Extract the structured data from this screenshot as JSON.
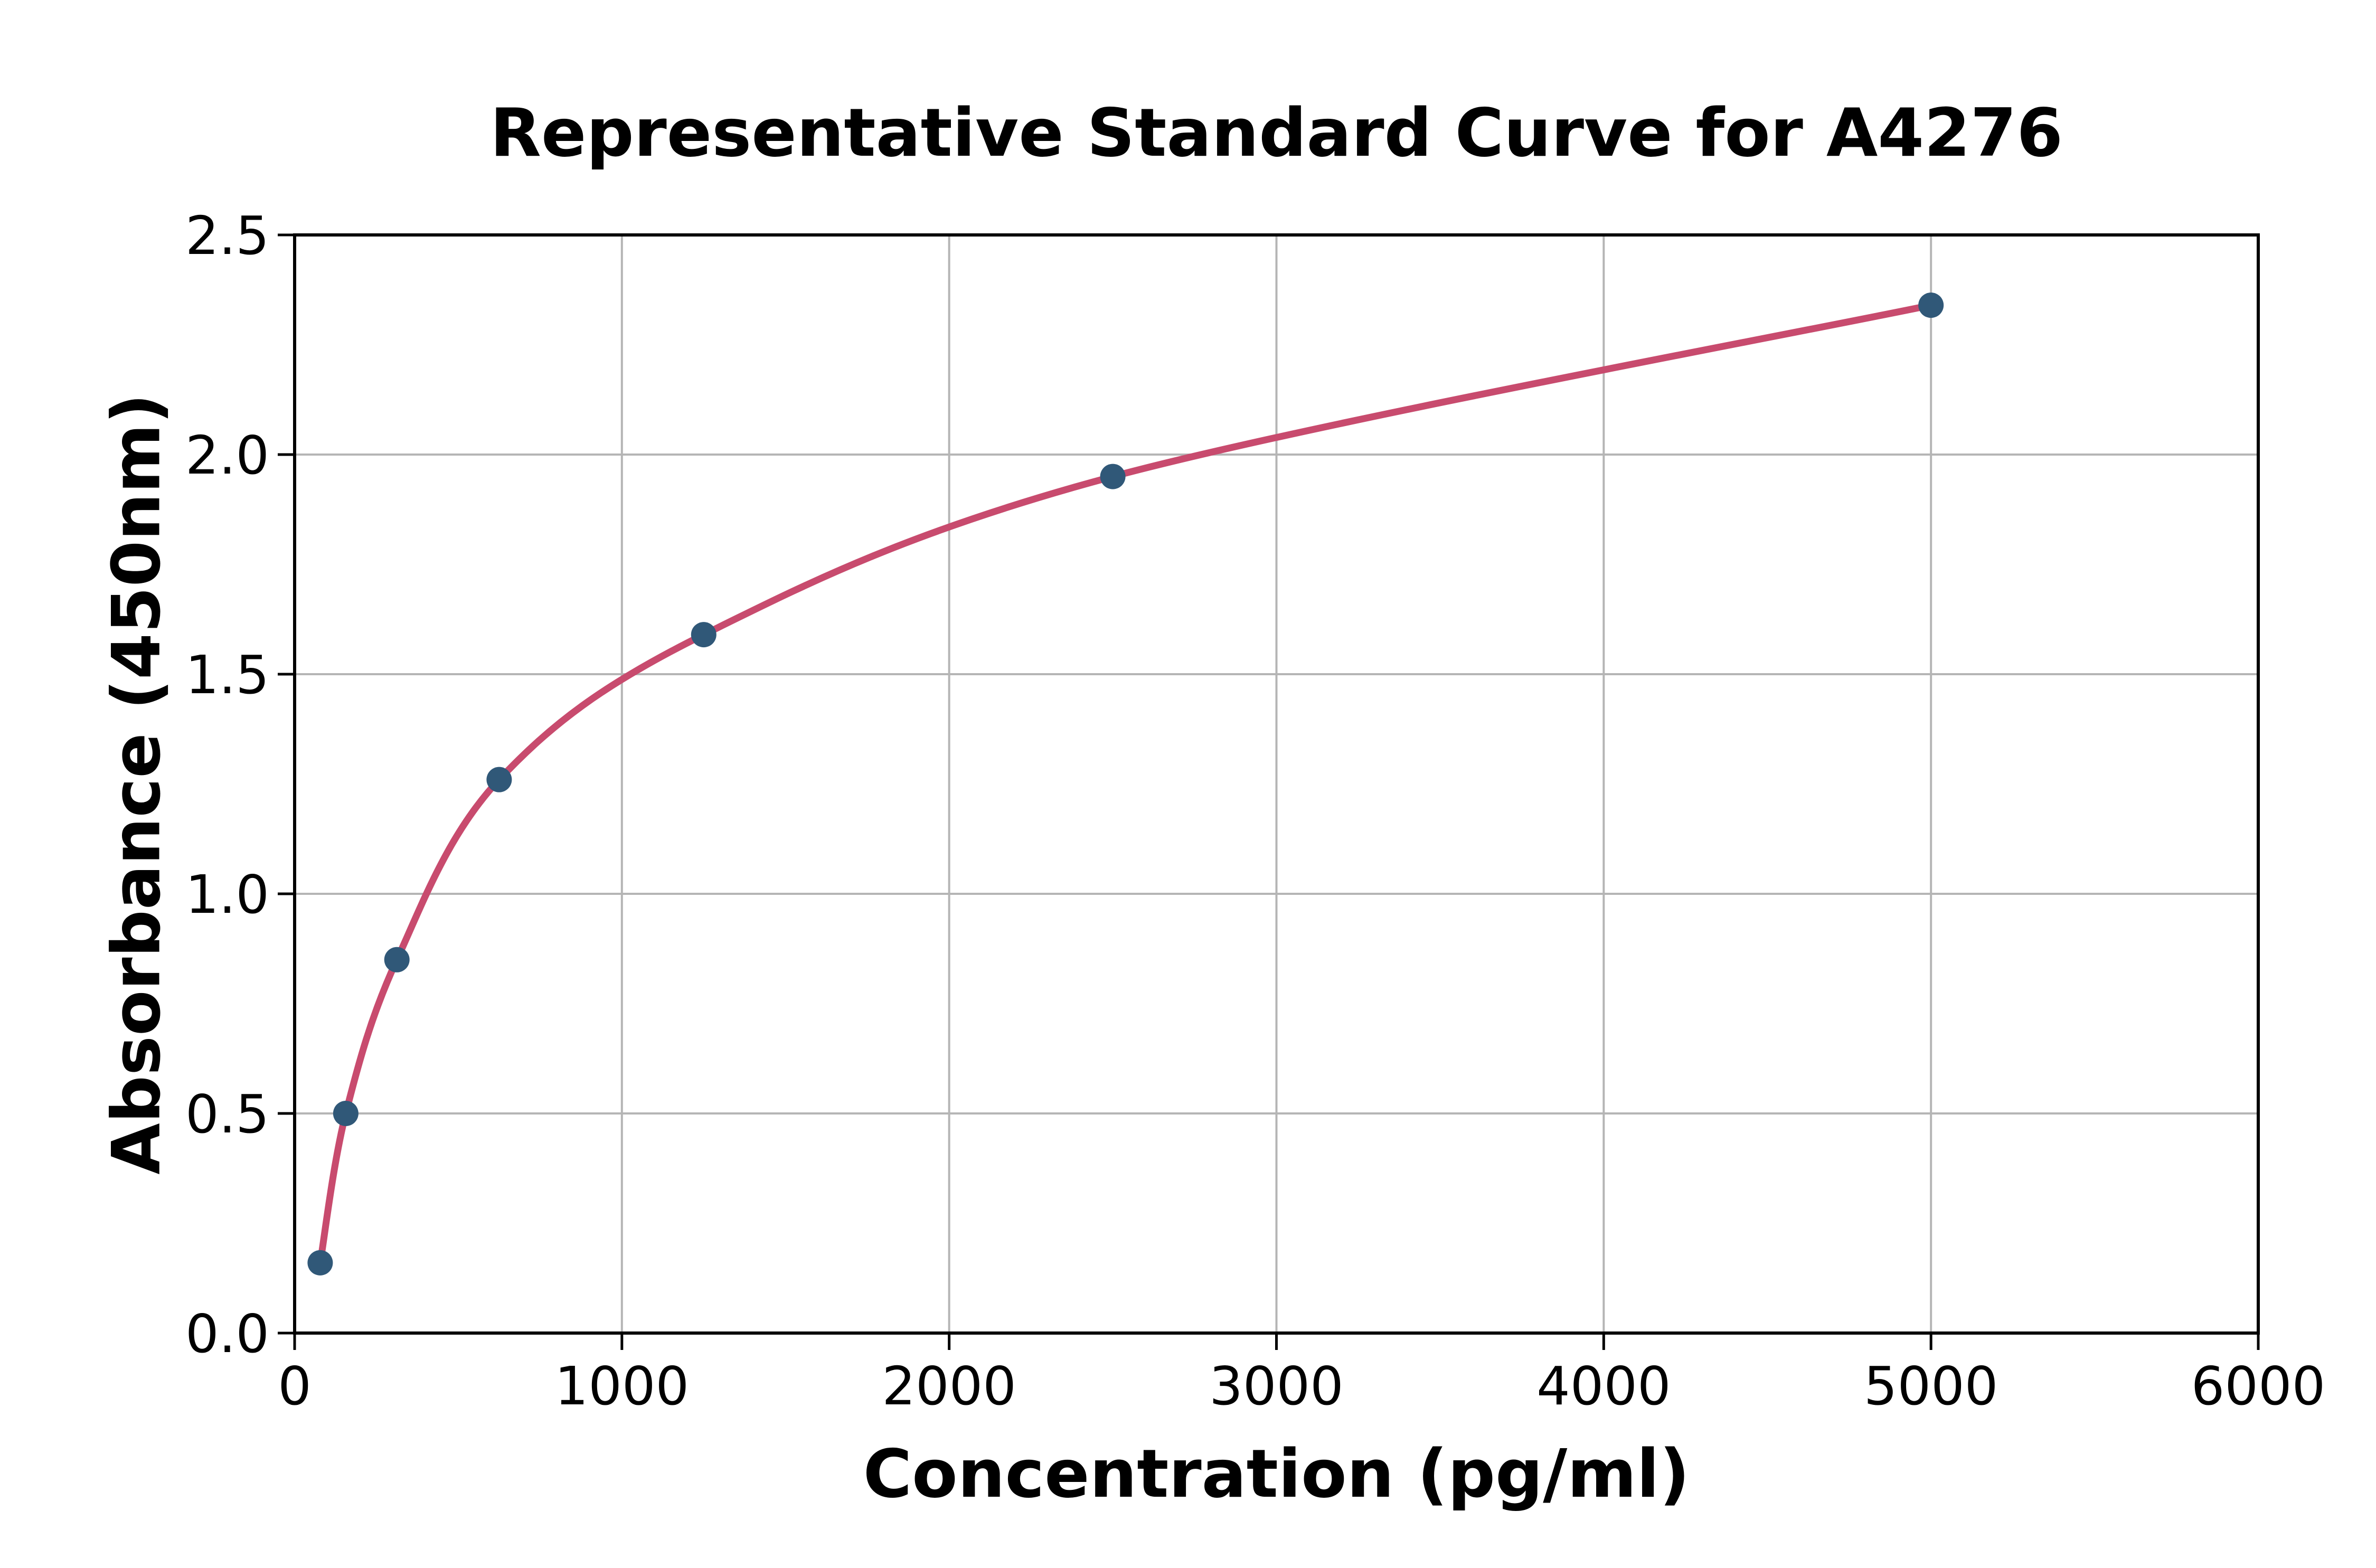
{
  "chart_data": {
    "type": "scatter",
    "title": "Representative Standard Curve for A4276",
    "xlabel": "Concentration (pg/ml)",
    "ylabel": "Absorbance (450nm)",
    "xlim": [
      0,
      6000
    ],
    "ylim": [
      0,
      2.5
    ],
    "xticks": [
      0,
      1000,
      2000,
      3000,
      4000,
      5000,
      6000
    ],
    "xtick_labels": [
      "0",
      "1000",
      "2000",
      "3000",
      "4000",
      "5000",
      "6000"
    ],
    "yticks": [
      0.0,
      0.5,
      1.0,
      1.5,
      2.0,
      2.5
    ],
    "ytick_labels": [
      "0.0",
      "0.5",
      "1.0",
      "1.5",
      "2.0",
      "2.5"
    ],
    "grid": true,
    "legend": "none",
    "series": [
      {
        "name": "standard-points",
        "type": "scatter",
        "x": [
          78.1,
          156.3,
          312.5,
          625,
          1250,
          2500,
          5000
        ],
        "y": [
          0.16,
          0.5,
          0.85,
          1.26,
          1.59,
          1.95,
          2.34
        ],
        "color": "#305878"
      },
      {
        "name": "fitted-curve",
        "type": "line",
        "x": [
          78.1,
          156.3,
          312.5,
          625,
          1250,
          2500,
          5000
        ],
        "y": [
          0.16,
          0.5,
          0.85,
          1.26,
          1.59,
          1.95,
          2.34
        ],
        "color": "#C84B6E"
      }
    ],
    "colors": {
      "marker": "#305878",
      "line": "#C84B6E",
      "grid": "#B5B5B5",
      "spine": "#000000",
      "background": "#FFFFFF",
      "text": "#000000"
    }
  }
}
